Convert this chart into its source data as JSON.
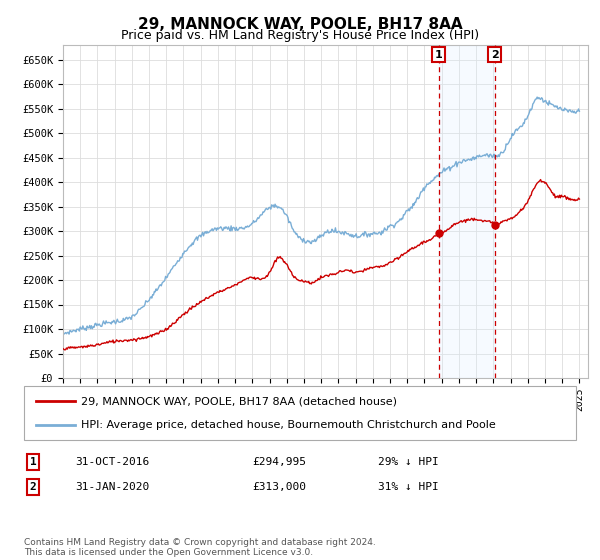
{
  "title": "29, MANNOCK WAY, POOLE, BH17 8AA",
  "subtitle": "Price paid vs. HM Land Registry's House Price Index (HPI)",
  "legend_property": "29, MANNOCK WAY, POOLE, BH17 8AA (detached house)",
  "legend_hpi": "HPI: Average price, detached house, Bournemouth Christchurch and Poole",
  "transaction1_label": "1",
  "transaction1_date": "31-OCT-2016",
  "transaction1_price": "£294,995",
  "transaction1_hpi": "29% ↓ HPI",
  "transaction1_year": 2016.83,
  "transaction1_value": 294995,
  "transaction2_label": "2",
  "transaction2_date": "31-JAN-2020",
  "transaction2_price": "£313,000",
  "transaction2_hpi": "31% ↓ HPI",
  "transaction2_year": 2020.08,
  "transaction2_value": 313000,
  "footer": "Contains HM Land Registry data © Crown copyright and database right 2024.\nThis data is licensed under the Open Government Licence v3.0.",
  "ylim": [
    0,
    680000
  ],
  "yticks": [
    0,
    50000,
    100000,
    150000,
    200000,
    250000,
    300000,
    350000,
    400000,
    450000,
    500000,
    550000,
    600000,
    650000
  ],
  "ytick_labels": [
    "£0",
    "£50K",
    "£100K",
    "£150K",
    "£200K",
    "£250K",
    "£300K",
    "£350K",
    "£400K",
    "£450K",
    "£500K",
    "£550K",
    "£600K",
    "£650K"
  ],
  "property_color": "#cc0000",
  "hpi_color": "#7aaed6",
  "shade_color": "#ddeeff",
  "background_color": "#ffffff",
  "grid_color": "#dddddd",
  "title_fontsize": 11,
  "subtitle_fontsize": 9
}
